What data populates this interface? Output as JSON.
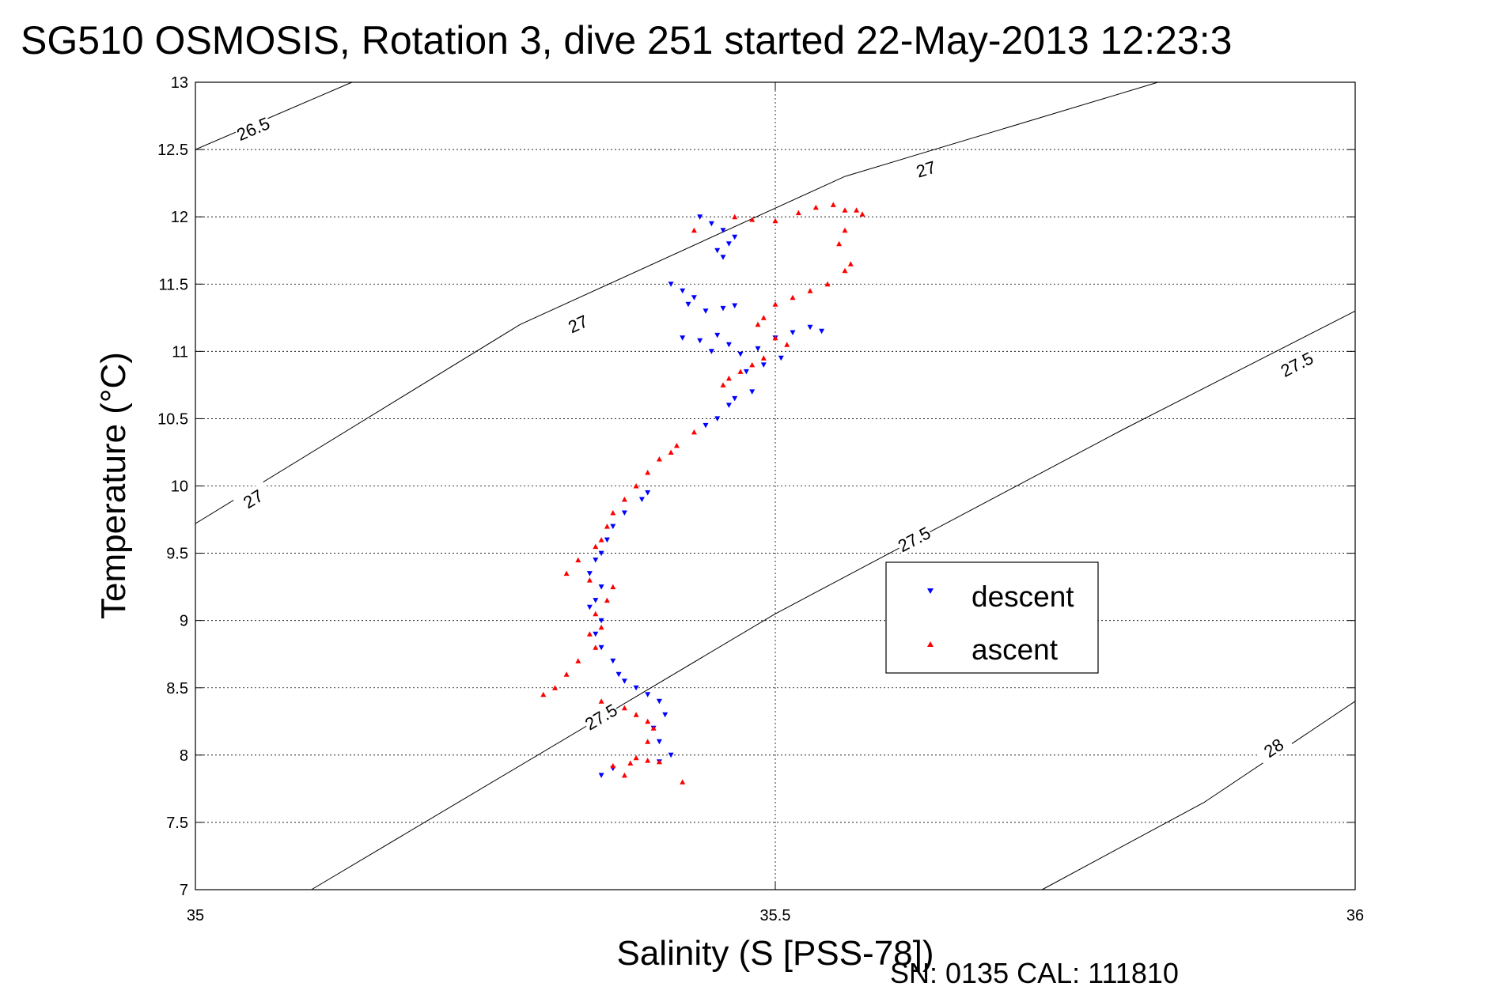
{
  "chart_data": {
    "type": "scatter",
    "title": "SG510 OSMOSIS, Rotation 3, dive 251 started 22-May-2013 12:23:3",
    "xlabel": "Salinity (S [PSS-78])",
    "ylabel": "Temperature (°C)",
    "xlim": [
      35,
      36
    ],
    "ylim": [
      7,
      13
    ],
    "x_ticks": [
      "35",
      "35.5",
      "36"
    ],
    "y_ticks": [
      "7",
      "7.5",
      "8",
      "8.5",
      "9",
      "9.5",
      "10",
      "10.5",
      "11",
      "11.5",
      "12",
      "12.5",
      "13"
    ],
    "grid": true,
    "legend_position": "center-right",
    "annotation": "SN: 0135  CAL: 111810",
    "density_contours": [
      {
        "label": "26.5",
        "points": [
          [
            35.0,
            12.5
          ],
          [
            35.135,
            13.0
          ]
        ],
        "label_at": [
          35.05,
          12.65
        ]
      },
      {
        "label": "27",
        "points": [
          [
            35.0,
            9.72
          ],
          [
            35.28,
            11.2
          ],
          [
            35.56,
            12.3
          ],
          [
            35.83,
            13.0
          ]
        ],
        "label_at": [
          [
            35.05,
            9.9
          ],
          [
            35.33,
            11.2
          ],
          [
            35.63,
            12.35
          ]
        ]
      },
      {
        "label": "27.5",
        "points": [
          [
            35.1,
            7.0
          ],
          [
            35.5,
            9.05
          ],
          [
            35.8,
            10.42
          ],
          [
            36.0,
            11.3
          ]
        ],
        "label_at": [
          [
            35.35,
            8.28
          ],
          [
            35.62,
            9.6
          ],
          [
            35.95,
            10.9
          ]
        ]
      },
      {
        "label": "28",
        "points": [
          [
            35.73,
            7.0
          ],
          [
            35.87,
            7.65
          ],
          [
            36.0,
            8.4
          ]
        ],
        "label_at": [
          35.93,
          8.05
        ]
      }
    ],
    "series": [
      {
        "name": "descent",
        "color": "#0000ff",
        "marker": "triangle-down",
        "points": [
          [
            35.435,
            12.0
          ],
          [
            35.445,
            11.95
          ],
          [
            35.455,
            11.9
          ],
          [
            35.465,
            11.85
          ],
          [
            35.46,
            11.8
          ],
          [
            35.45,
            11.75
          ],
          [
            35.455,
            11.7
          ],
          [
            35.41,
            11.5
          ],
          [
            35.42,
            11.45
          ],
          [
            35.43,
            11.4
          ],
          [
            35.425,
            11.35
          ],
          [
            35.44,
            11.3
          ],
          [
            35.455,
            11.32
          ],
          [
            35.465,
            11.34
          ],
          [
            35.42,
            11.1
          ],
          [
            35.435,
            11.08
          ],
          [
            35.45,
            11.12
          ],
          [
            35.46,
            11.05
          ],
          [
            35.445,
            11.0
          ],
          [
            35.47,
            10.98
          ],
          [
            35.485,
            11.02
          ],
          [
            35.5,
            11.1
          ],
          [
            35.515,
            11.14
          ],
          [
            35.53,
            11.18
          ],
          [
            35.54,
            11.15
          ],
          [
            35.505,
            10.95
          ],
          [
            35.49,
            10.9
          ],
          [
            35.475,
            10.85
          ],
          [
            35.46,
            10.6
          ],
          [
            35.465,
            10.65
          ],
          [
            35.48,
            10.7
          ],
          [
            35.45,
            10.5
          ],
          [
            35.44,
            10.45
          ],
          [
            35.385,
            9.9
          ],
          [
            35.39,
            9.95
          ],
          [
            35.37,
            9.8
          ],
          [
            35.36,
            9.7
          ],
          [
            35.355,
            9.6
          ],
          [
            35.35,
            9.5
          ],
          [
            35.345,
            9.45
          ],
          [
            35.34,
            9.35
          ],
          [
            35.35,
            9.25
          ],
          [
            35.345,
            9.15
          ],
          [
            35.34,
            9.1
          ],
          [
            35.35,
            9.0
          ],
          [
            35.345,
            8.9
          ],
          [
            35.35,
            8.8
          ],
          [
            35.36,
            8.7
          ],
          [
            35.365,
            8.6
          ],
          [
            35.37,
            8.55
          ],
          [
            35.38,
            8.5
          ],
          [
            35.39,
            8.45
          ],
          [
            35.4,
            8.4
          ],
          [
            35.405,
            8.3
          ],
          [
            35.395,
            8.2
          ],
          [
            35.4,
            8.1
          ],
          [
            35.41,
            8.0
          ],
          [
            35.4,
            7.95
          ],
          [
            35.36,
            7.9
          ],
          [
            35.35,
            7.85
          ]
        ]
      },
      {
        "name": "ascent",
        "color": "#ff0000",
        "marker": "triangle-up",
        "points": [
          [
            35.43,
            11.9
          ],
          [
            35.465,
            12.0
          ],
          [
            35.48,
            11.98
          ],
          [
            35.5,
            11.97
          ],
          [
            35.52,
            12.03
          ],
          [
            35.535,
            12.07
          ],
          [
            35.55,
            12.09
          ],
          [
            35.56,
            12.05
          ],
          [
            35.57,
            12.05
          ],
          [
            35.575,
            12.02
          ],
          [
            35.56,
            11.9
          ],
          [
            35.555,
            11.8
          ],
          [
            35.565,
            11.65
          ],
          [
            35.56,
            11.6
          ],
          [
            35.545,
            11.5
          ],
          [
            35.53,
            11.45
          ],
          [
            35.515,
            11.4
          ],
          [
            35.5,
            11.35
          ],
          [
            35.49,
            11.25
          ],
          [
            35.485,
            11.2
          ],
          [
            35.5,
            11.1
          ],
          [
            35.51,
            11.05
          ],
          [
            35.49,
            10.95
          ],
          [
            35.48,
            10.9
          ],
          [
            35.47,
            10.85
          ],
          [
            35.46,
            10.8
          ],
          [
            35.455,
            10.75
          ],
          [
            35.43,
            10.4
          ],
          [
            35.415,
            10.3
          ],
          [
            35.41,
            10.25
          ],
          [
            35.4,
            10.2
          ],
          [
            35.39,
            10.1
          ],
          [
            35.38,
            10.0
          ],
          [
            35.37,
            9.9
          ],
          [
            35.36,
            9.8
          ],
          [
            35.355,
            9.7
          ],
          [
            35.35,
            9.6
          ],
          [
            35.345,
            9.55
          ],
          [
            35.33,
            9.45
          ],
          [
            35.32,
            9.35
          ],
          [
            35.34,
            9.3
          ],
          [
            35.36,
            9.25
          ],
          [
            35.355,
            9.15
          ],
          [
            35.345,
            9.05
          ],
          [
            35.35,
            8.95
          ],
          [
            35.34,
            8.9
          ],
          [
            35.345,
            8.8
          ],
          [
            35.33,
            8.7
          ],
          [
            35.32,
            8.6
          ],
          [
            35.31,
            8.5
          ],
          [
            35.3,
            8.45
          ],
          [
            35.35,
            8.4
          ],
          [
            35.37,
            8.35
          ],
          [
            35.38,
            8.3
          ],
          [
            35.39,
            8.25
          ],
          [
            35.395,
            8.2
          ],
          [
            35.39,
            8.1
          ],
          [
            35.38,
            7.98
          ],
          [
            35.39,
            7.96
          ],
          [
            35.4,
            7.95
          ],
          [
            35.375,
            7.94
          ],
          [
            35.36,
            7.92
          ],
          [
            35.37,
            7.85
          ],
          [
            35.42,
            7.8
          ]
        ]
      }
    ]
  }
}
